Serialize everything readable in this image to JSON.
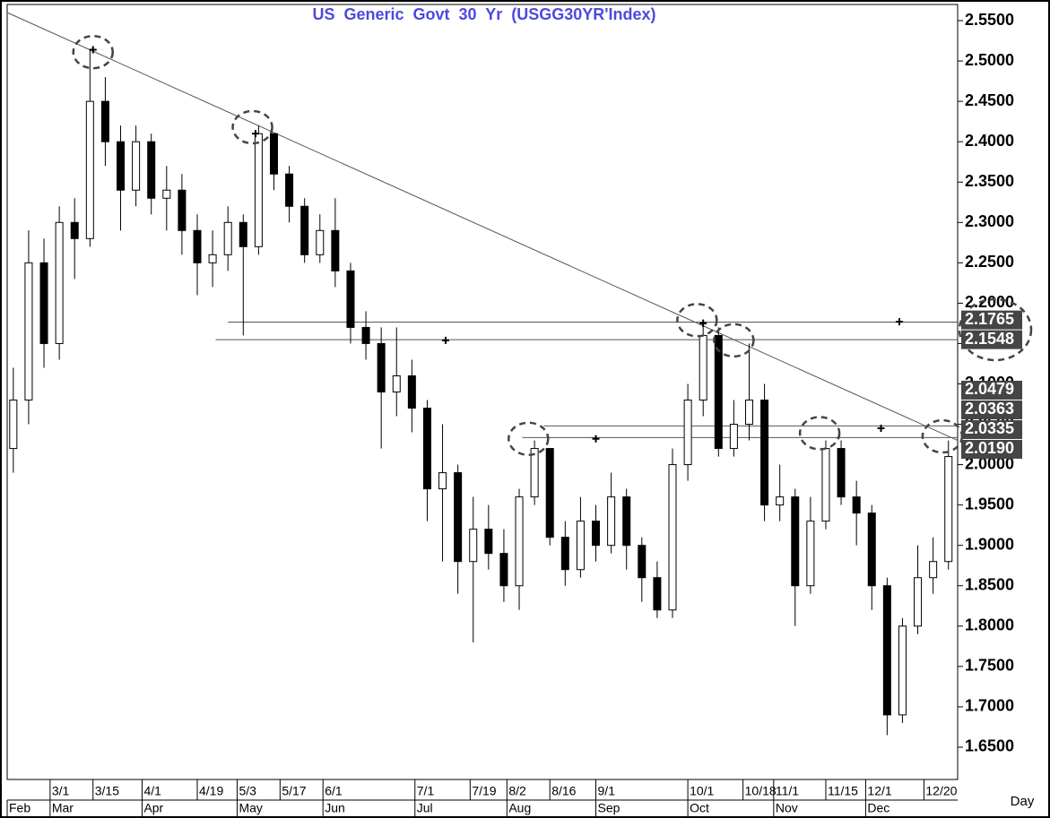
{
  "chart_data": {
    "type": "candlestick",
    "title": "US Generic Govt 30 Yr (USGG30YR'Index)",
    "x_axis_label": "Day",
    "xlim": [
      0,
      310
    ],
    "ylim": [
      1.61,
      2.57
    ],
    "yticks": [
      {
        "value": 2.55,
        "label": "2.5500"
      },
      {
        "value": 2.5,
        "label": "2.5000"
      },
      {
        "value": 2.45,
        "label": "2.4500"
      },
      {
        "value": 2.4,
        "label": "2.4000"
      },
      {
        "value": 2.35,
        "label": "2.3500"
      },
      {
        "value": 2.3,
        "label": "2.3000"
      },
      {
        "value": 2.25,
        "label": "2.2500"
      },
      {
        "value": 2.2,
        "label": "2.2000"
      },
      {
        "value": 2.15,
        "label": "2.1500"
      },
      {
        "value": 2.1,
        "label": "2.1000"
      },
      {
        "value": 2.05,
        "label": "2.0500"
      },
      {
        "value": 2.0,
        "label": "2.0000"
      },
      {
        "value": 1.95,
        "label": "1.9500"
      },
      {
        "value": 1.9,
        "label": "1.9000"
      },
      {
        "value": 1.85,
        "label": "1.8500"
      },
      {
        "value": 1.8,
        "label": "1.8000"
      },
      {
        "value": 1.75,
        "label": "1.7500"
      },
      {
        "value": 1.7,
        "label": "1.7000"
      },
      {
        "value": 1.65,
        "label": "1.6500"
      }
    ],
    "xticks": [
      {
        "value": 14,
        "label": "3/1"
      },
      {
        "value": 28,
        "label": "3/15"
      },
      {
        "value": 44,
        "label": "4/1"
      },
      {
        "value": 62,
        "label": "4/19"
      },
      {
        "value": 75,
        "label": "5/3"
      },
      {
        "value": 89,
        "label": "5/17"
      },
      {
        "value": 103,
        "label": "6/1"
      },
      {
        "value": 133,
        "label": "7/1"
      },
      {
        "value": 151,
        "label": "7/19"
      },
      {
        "value": 163,
        "label": "8/2"
      },
      {
        "value": 177,
        "label": "8/16"
      },
      {
        "value": 192,
        "label": "9/1"
      },
      {
        "value": 222,
        "label": "10/1"
      },
      {
        "value": 240,
        "label": "10/18"
      },
      {
        "value": 250,
        "label": "11/1"
      },
      {
        "value": 267,
        "label": "11/15"
      },
      {
        "value": 280,
        "label": "12/1"
      },
      {
        "value": 299,
        "label": "12/20"
      }
    ],
    "month_ticks": [
      {
        "value": 0,
        "label": "Feb"
      },
      {
        "value": 14,
        "label": "Mar"
      },
      {
        "value": 44,
        "label": "Apr"
      },
      {
        "value": 75,
        "label": "May"
      },
      {
        "value": 103,
        "label": "Jun"
      },
      {
        "value": 133,
        "label": "Jul"
      },
      {
        "value": 163,
        "label": "Aug"
      },
      {
        "value": 192,
        "label": "Sep"
      },
      {
        "value": 222,
        "label": "Oct"
      },
      {
        "value": 250,
        "label": "Nov"
      },
      {
        "value": 280,
        "label": "Dec"
      }
    ],
    "x": [
      2,
      7,
      12,
      17,
      22,
      27,
      32,
      37,
      42,
      47,
      52,
      57,
      62,
      67,
      72,
      77,
      82,
      87,
      92,
      97,
      102,
      107,
      112,
      117,
      122,
      127,
      132,
      137,
      142,
      147,
      152,
      157,
      162,
      167,
      172,
      177,
      182,
      187,
      192,
      197,
      202,
      207,
      212,
      217,
      222,
      227,
      232,
      237,
      242,
      247,
      252,
      257,
      262,
      267,
      272,
      277,
      282,
      287,
      292,
      297,
      302,
      307
    ],
    "open": [
      2.02,
      2.08,
      2.25,
      2.15,
      2.3,
      2.28,
      2.45,
      2.4,
      2.34,
      2.4,
      2.33,
      2.34,
      2.29,
      2.25,
      2.26,
      2.3,
      2.27,
      2.41,
      2.36,
      2.32,
      2.26,
      2.29,
      2.24,
      2.17,
      2.15,
      2.09,
      2.11,
      2.07,
      1.97,
      1.99,
      1.88,
      1.92,
      1.89,
      1.85,
      1.96,
      2.02,
      1.91,
      1.87,
      1.93,
      1.9,
      1.96,
      1.9,
      1.86,
      1.82,
      2.0,
      2.08,
      2.16,
      2.02,
      2.05,
      2.08,
      1.95,
      1.96,
      1.85,
      1.93,
      2.02,
      1.96,
      1.94,
      1.85,
      1.69,
      1.8,
      1.86,
      1.88
    ],
    "high": [
      2.12,
      2.29,
      2.28,
      2.32,
      2.33,
      2.515,
      2.48,
      2.42,
      2.42,
      2.41,
      2.37,
      2.36,
      2.31,
      2.29,
      2.32,
      2.31,
      2.42,
      2.41,
      2.37,
      2.33,
      2.31,
      2.33,
      2.25,
      2.19,
      2.17,
      2.17,
      2.13,
      2.08,
      2.05,
      2.0,
      1.96,
      1.95,
      1.92,
      1.97,
      2.03,
      2.02,
      1.93,
      1.96,
      1.95,
      1.99,
      1.97,
      1.91,
      1.88,
      2.02,
      2.1,
      2.18,
      2.17,
      2.08,
      2.15,
      2.1,
      2.0,
      1.97,
      1.96,
      2.03,
      2.03,
      1.98,
      1.95,
      1.86,
      1.81,
      1.9,
      1.91,
      2.03
    ],
    "low": [
      1.99,
      2.05,
      2.12,
      2.13,
      2.23,
      2.27,
      2.37,
      2.29,
      2.32,
      2.31,
      2.29,
      2.26,
      2.21,
      2.22,
      2.24,
      2.16,
      2.26,
      2.34,
      2.3,
      2.25,
      2.25,
      2.22,
      2.15,
      2.13,
      2.02,
      2.06,
      2.04,
      1.93,
      1.88,
      1.84,
      1.78,
      1.87,
      1.83,
      1.82,
      1.95,
      1.9,
      1.85,
      1.86,
      1.88,
      1.89,
      1.87,
      1.83,
      1.81,
      1.81,
      1.98,
      2.06,
      2.01,
      2.01,
      2.03,
      1.93,
      1.93,
      1.8,
      1.84,
      1.92,
      1.95,
      1.9,
      1.82,
      1.665,
      1.68,
      1.79,
      1.84,
      1.87
    ],
    "close": [
      2.08,
      2.25,
      2.15,
      2.3,
      2.28,
      2.45,
      2.4,
      2.34,
      2.4,
      2.33,
      2.34,
      2.29,
      2.25,
      2.26,
      2.3,
      2.27,
      2.41,
      2.36,
      2.32,
      2.26,
      2.29,
      2.24,
      2.17,
      2.15,
      2.09,
      2.11,
      2.07,
      1.97,
      1.99,
      1.88,
      1.92,
      1.89,
      1.85,
      1.96,
      2.02,
      1.91,
      1.87,
      1.93,
      1.9,
      1.96,
      1.9,
      1.86,
      1.82,
      2.0,
      2.08,
      2.16,
      2.02,
      2.05,
      2.08,
      1.95,
      1.96,
      1.85,
      1.93,
      2.02,
      1.96,
      1.94,
      1.85,
      1.69,
      1.8,
      1.86,
      1.88,
      2.01
    ],
    "trendline": {
      "x": [
        0,
        310
      ],
      "y": [
        2.56,
        2.03
      ]
    },
    "hlines": [
      {
        "value": 2.1765,
        "start": 72
      },
      {
        "value": 2.1548,
        "start": 68
      },
      {
        "value": 2.0479,
        "start": 175
      },
      {
        "value": 2.0335,
        "start": 168
      }
    ],
    "price_labels": [
      2.1765,
      2.1548,
      2.0479,
      2.0363,
      2.0335,
      {
        "value": 2.019,
        "label": "2.0190"
      }
    ],
    "highlights": {
      "x": [
        28,
        80,
        225,
        237,
        170,
        265,
        305
      ],
      "y": [
        2.511,
        2.418,
        2.179,
        2.154,
        2.032,
        2.039,
        2.035
      ]
    },
    "markers": {
      "x": [
        28,
        81,
        143,
        192,
        227,
        291,
        285
      ],
      "y": [
        2.514,
        2.41,
        2.154,
        2.032,
        2.175,
        2.177,
        2.045
      ]
    },
    "colors": {
      "up": "#ffffff",
      "down": "#000000",
      "title": "#4a4ae0",
      "label_box": "#454545"
    }
  }
}
